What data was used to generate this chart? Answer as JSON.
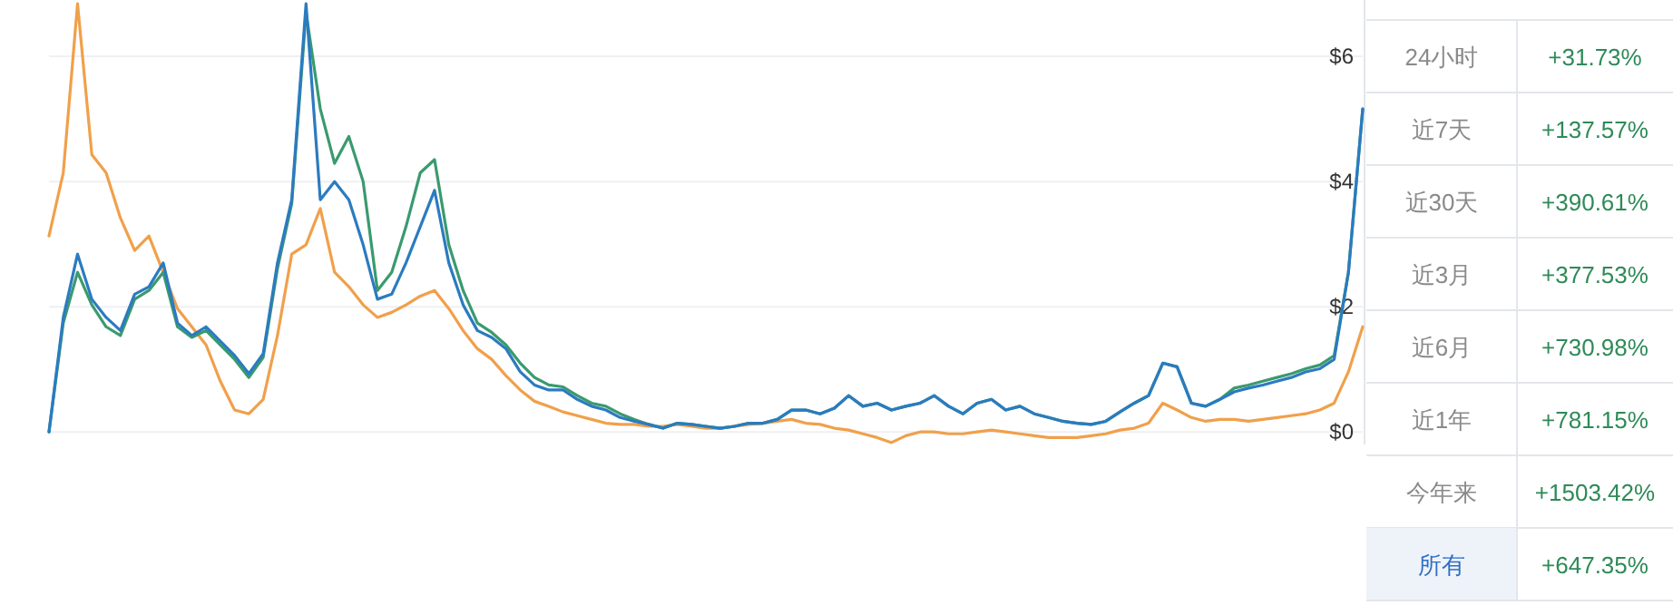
{
  "chart_data": [
    {
      "type": "line",
      "categories": [
        null,
        null,
        null,
        null,
        null,
        null,
        null,
        null,
        null,
        null,
        null,
        null,
        null,
        null,
        null,
        null,
        null,
        null,
        null,
        null,
        null,
        null,
        null,
        null,
        null,
        null,
        null,
        null,
        null,
        null,
        null,
        null,
        null,
        null,
        null,
        null,
        null,
        null,
        null,
        null,
        null,
        null,
        null,
        null,
        null,
        null,
        null,
        null,
        null,
        null,
        null,
        null,
        null,
        null,
        null,
        null,
        null,
        null,
        null,
        null,
        null,
        null,
        null,
        null,
        null,
        null,
        null,
        null,
        null,
        null,
        null,
        null,
        null,
        null,
        null,
        null,
        null,
        null,
        null,
        null,
        null,
        null,
        null,
        null,
        null,
        null,
        null,
        null,
        null,
        null,
        null,
        null,
        null
      ],
      "series": [
        {
          "color": "#f0a04b",
          "values": [
            3.13,
            4.14,
            6.84,
            4.43,
            4.14,
            3.42,
            2.9,
            3.13,
            2.55,
            1.97,
            1.68,
            1.39,
            0.81,
            0.35,
            0.29,
            0.52,
            1.54,
            2.84,
            2.99,
            3.57,
            2.55,
            2.32,
            2.03,
            1.83,
            1.91,
            2.03,
            2.17,
            2.26,
            1.97,
            1.62,
            1.33,
            1.16,
            0.9,
            0.67,
            0.49,
            0.41,
            0.32,
            0.26,
            0.2,
            0.14,
            0.12,
            0.12,
            0.09,
            0.09,
            0.12,
            0.09,
            0.06,
            0.06,
            0.09,
            0.12,
            0.14,
            0.17,
            0.2,
            0.14,
            0.12,
            0.06,
            0.03,
            -0.03,
            -0.09,
            -0.17,
            -0.06,
            0,
            0,
            -0.03,
            -0.03,
            0,
            0.03,
            0,
            -0.03,
            -0.06,
            -0.09,
            -0.09,
            -0.09,
            -0.06,
            -0.03,
            0.03,
            0.06,
            0.14,
            0.46,
            0.35,
            0.23,
            0.17,
            0.2,
            0.2,
            0.17,
            0.2,
            0.23,
            0.26,
            0.29,
            0.35,
            0.46,
            0.96,
            1.68
          ]
        },
        {
          "color": "#3a9a6e",
          "values": [
            0,
            1.74,
            2.55,
            2.03,
            1.68,
            1.54,
            2.12,
            2.26,
            2.55,
            1.68,
            1.51,
            1.62,
            1.39,
            1.16,
            0.87,
            1.19,
            2.61,
            3.65,
            6.7,
            5.16,
            4.29,
            4.72,
            4.0,
            2.26,
            2.55,
            3.28,
            4.14,
            4.35,
            2.99,
            2.26,
            1.74,
            1.59,
            1.39,
            1.1,
            0.87,
            0.75,
            0.72,
            0.58,
            0.46,
            0.41,
            0.29,
            0.2,
            0.12,
            0.06,
            0.14,
            0.12,
            0.09,
            0.06,
            0.09,
            0.14,
            0.14,
            0.2,
            0.35,
            0.35,
            0.29,
            0.38,
            0.58,
            0.41,
            0.46,
            0.35,
            0.41,
            0.46,
            0.58,
            0.41,
            0.29,
            0.46,
            0.52,
            0.35,
            0.41,
            0.29,
            0.23,
            0.17,
            0.14,
            0.12,
            0.17,
            0.32,
            0.46,
            0.58,
            1.1,
            1.04,
            0.46,
            0.41,
            0.52,
            0.7,
            0.75,
            0.81,
            0.87,
            0.93,
            1.01,
            1.07,
            1.22,
            2.55,
            5.16
          ]
        },
        {
          "color": "#2b7bc0",
          "values": [
            0,
            1.83,
            2.84,
            2.12,
            1.83,
            1.62,
            2.2,
            2.32,
            2.7,
            1.74,
            1.54,
            1.68,
            1.45,
            1.22,
            0.93,
            1.25,
            2.7,
            3.71,
            6.84,
            3.71,
            4.0,
            3.71,
            2.99,
            2.12,
            2.2,
            2.7,
            3.28,
            3.86,
            2.7,
            2.03,
            1.62,
            1.51,
            1.33,
            0.96,
            0.75,
            0.67,
            0.67,
            0.52,
            0.41,
            0.35,
            0.23,
            0.17,
            0.12,
            0.06,
            0.14,
            0.12,
            0.09,
            0.06,
            0.09,
            0.14,
            0.14,
            0.2,
            0.35,
            0.35,
            0.29,
            0.38,
            0.58,
            0.41,
            0.46,
            0.35,
            0.41,
            0.46,
            0.58,
            0.41,
            0.29,
            0.46,
            0.52,
            0.35,
            0.41,
            0.29,
            0.23,
            0.17,
            0.14,
            0.12,
            0.17,
            0.32,
            0.46,
            0.58,
            1.1,
            1.04,
            0.46,
            0.41,
            0.52,
            0.64,
            0.7,
            0.75,
            0.81,
            0.87,
            0.96,
            1.01,
            1.16,
            2.55,
            5.16
          ]
        }
      ],
      "ylim": [
        -0.2,
        6.9
      ],
      "yticks": [
        {
          "value": 0,
          "label": "$0"
        },
        {
          "value": 2,
          "label": "$2"
        },
        {
          "value": 4,
          "label": "$4"
        },
        {
          "value": 6,
          "label": "$6"
        }
      ],
      "grid": "y",
      "tick_labels": "y"
    },
    {
      "type": "other",
      "categories": [
        "24小时",
        "近7天",
        "近30天",
        "近3月",
        "近6月",
        "近1年",
        "今年来",
        "所有"
      ],
      "annotations": [
        "+31.73%",
        "+137.57%",
        "+390.61%",
        "+377.53%",
        "+730.98%",
        "+781.15%",
        "+1503.42%",
        "+647.35%"
      ]
    }
  ]
}
